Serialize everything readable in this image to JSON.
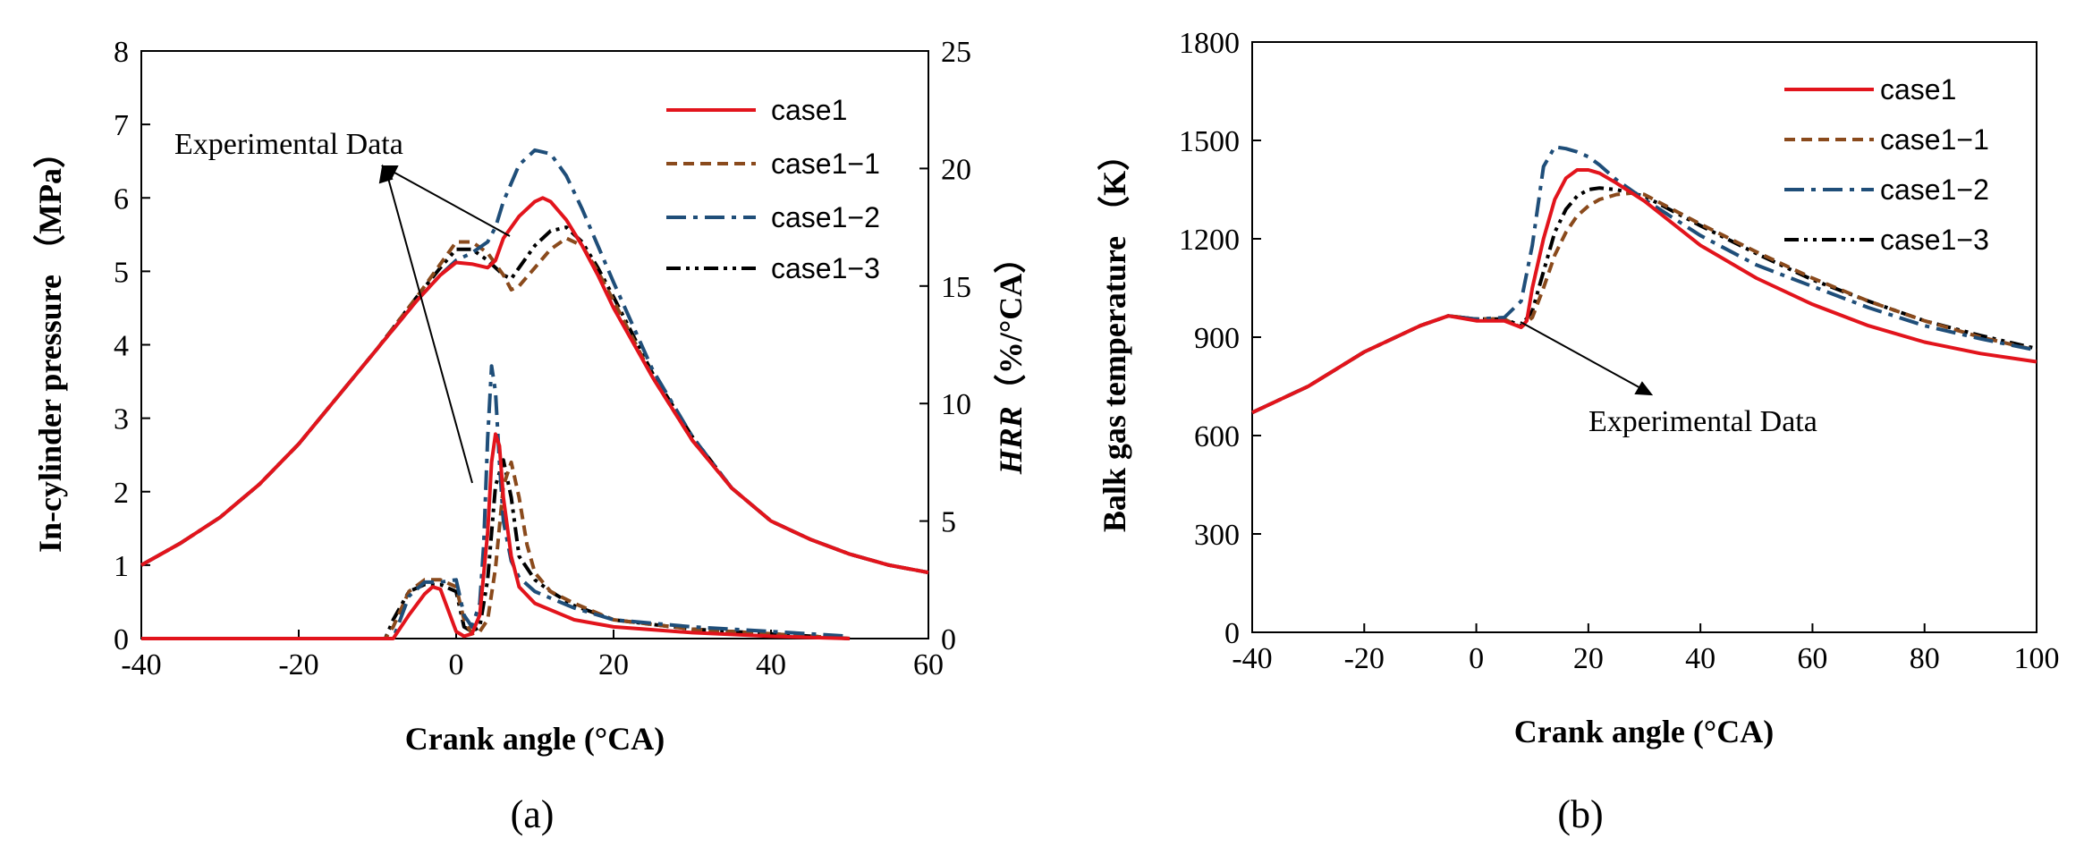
{
  "colors": {
    "case1": "#e2141c",
    "case1_1": "#8a4a1c",
    "case1_2": "#1f4e79",
    "case1_3": "#000000"
  },
  "chart_data": [
    {
      "type": "line",
      "panel_label": "(a)",
      "title": "",
      "xlabel": "Crank angle (°CA)",
      "ylabel": "In-cylinder pressure （MPa）",
      "y2label_italic": "HRR",
      "y2label_unit": "（%/°CA）",
      "xlim": [
        -40,
        60
      ],
      "ylim": [
        0,
        8
      ],
      "y2lim": [
        0,
        25
      ],
      "xticks": [
        "-40",
        "-20",
        "0",
        "20",
        "40",
        "60"
      ],
      "yticks": [
        "0",
        "1",
        "2",
        "3",
        "4",
        "5",
        "6",
        "7",
        "8"
      ],
      "y2ticks": [
        "0",
        "5",
        "10",
        "15",
        "20",
        "25"
      ],
      "legend_position": "top-right",
      "annotation": "Experimental Data",
      "pressure_series": [
        {
          "name": "case1",
          "style": "solid",
          "x": [
            -40,
            -35,
            -30,
            -25,
            -20,
            -15,
            -10,
            -5,
            -2,
            0,
            2,
            4,
            5,
            6,
            8,
            10,
            11,
            12,
            14,
            16,
            18,
            20,
            25,
            30,
            35,
            40,
            45,
            50,
            55,
            60
          ],
          "y": [
            1.0,
            1.3,
            1.65,
            2.1,
            2.65,
            3.3,
            3.95,
            4.6,
            4.95,
            5.12,
            5.1,
            5.05,
            5.15,
            5.45,
            5.75,
            5.95,
            6.0,
            5.95,
            5.7,
            5.35,
            4.95,
            4.5,
            3.55,
            2.7,
            2.05,
            1.6,
            1.35,
            1.15,
            1.0,
            0.9
          ]
        },
        {
          "name": "case1−1",
          "style": "dashed",
          "x": [
            -40,
            -35,
            -30,
            -25,
            -20,
            -15,
            -10,
            -5,
            -2,
            0,
            2,
            4,
            6,
            7,
            8,
            10,
            12,
            14,
            16,
            18,
            20,
            25,
            30,
            35,
            40,
            45,
            50,
            55,
            60
          ],
          "y": [
            1.0,
            1.3,
            1.65,
            2.1,
            2.65,
            3.3,
            3.95,
            4.65,
            5.1,
            5.4,
            5.4,
            5.25,
            4.95,
            4.75,
            4.8,
            5.05,
            5.3,
            5.45,
            5.35,
            5.0,
            4.6,
            3.55,
            2.7,
            2.05,
            1.6,
            1.35,
            1.15,
            1.0,
            0.9
          ]
        },
        {
          "name": "case1−2",
          "style": "dashdot",
          "x": [
            -40,
            -35,
            -30,
            -25,
            -20,
            -15,
            -10,
            -5,
            -2,
            0,
            2,
            4,
            5,
            6,
            8,
            10,
            12,
            14,
            16,
            18,
            20,
            25,
            30,
            35,
            40,
            45,
            50,
            55,
            60
          ],
          "y": [
            1.0,
            1.3,
            1.65,
            2.1,
            2.65,
            3.3,
            3.95,
            4.6,
            4.95,
            5.15,
            5.25,
            5.4,
            5.6,
            5.95,
            6.45,
            6.65,
            6.6,
            6.3,
            5.85,
            5.35,
            4.85,
            3.65,
            2.75,
            2.05,
            1.6,
            1.35,
            1.15,
            1.0,
            0.9
          ]
        },
        {
          "name": "case1−3",
          "style": "dashdotdot",
          "x": [
            -40,
            -35,
            -30,
            -25,
            -20,
            -15,
            -10,
            -5,
            -2,
            0,
            2,
            4,
            6,
            7,
            8,
            10,
            12,
            14,
            16,
            18,
            20,
            25,
            30,
            35,
            40,
            45,
            50,
            55,
            60
          ],
          "y": [
            1.0,
            1.3,
            1.65,
            2.1,
            2.65,
            3.3,
            3.95,
            4.65,
            5.05,
            5.3,
            5.3,
            5.15,
            4.95,
            4.9,
            5.05,
            5.35,
            5.55,
            5.6,
            5.4,
            5.05,
            4.65,
            3.6,
            2.75,
            2.05,
            1.6,
            1.35,
            1.15,
            1.0,
            0.9
          ]
        }
      ],
      "hrr_series": [
        {
          "name": "case1",
          "x": [
            -40,
            -10,
            -8,
            -6,
            -4,
            -3,
            -2,
            0,
            1,
            2,
            3,
            4,
            4.5,
            5,
            5.5,
            6,
            7,
            8,
            10,
            15,
            20,
            30,
            40,
            50
          ],
          "y": [
            0,
            0,
            0,
            1.0,
            1.9,
            2.2,
            2.1,
            0.3,
            0.1,
            0.2,
            1.0,
            4.5,
            7.5,
            8.7,
            8.2,
            6.0,
            3.5,
            2.2,
            1.5,
            0.8,
            0.5,
            0.25,
            0.1,
            0
          ]
        },
        {
          "name": "case1−1",
          "x": [
            -40,
            -10,
            -9,
            -8,
            -6,
            -4,
            -2,
            0,
            1,
            2,
            3,
            4,
            5,
            6,
            7,
            8,
            9,
            10,
            12,
            15,
            20,
            30,
            40,
            50
          ],
          "y": [
            0,
            0,
            0,
            0.5,
            2.0,
            2.5,
            2.5,
            2.2,
            0.8,
            0.2,
            0.3,
            0.8,
            3.0,
            6.5,
            7.5,
            6.0,
            4.0,
            2.8,
            2.0,
            1.5,
            0.8,
            0.4,
            0.2,
            0
          ]
        },
        {
          "name": "case1−2",
          "x": [
            -40,
            -10,
            -8,
            -6,
            -4,
            -2,
            0,
            1,
            2,
            3,
            3.5,
            4,
            4.5,
            5,
            5.5,
            6,
            7,
            8,
            10,
            15,
            20,
            30,
            40,
            50
          ],
          "y": [
            0,
            0,
            0,
            1.8,
            2.4,
            2.4,
            2.5,
            1.0,
            0.5,
            1.5,
            4.0,
            8.5,
            11.6,
            10.5,
            7.5,
            5.0,
            3.3,
            2.6,
            2.0,
            1.3,
            0.8,
            0.5,
            0.3,
            0.1
          ]
        },
        {
          "name": "case1−3",
          "x": [
            -40,
            -10,
            -9,
            -8,
            -6,
            -4,
            -2,
            0,
            1,
            2,
            3,
            4,
            5,
            6,
            7,
            8,
            10,
            12,
            15,
            20,
            30,
            40,
            50
          ],
          "y": [
            0,
            0,
            0,
            0.8,
            2.0,
            2.3,
            2.3,
            2.0,
            0.5,
            0.3,
            0.5,
            2.5,
            6.5,
            7.6,
            6.0,
            3.5,
            2.5,
            2.0,
            1.4,
            0.8,
            0.4,
            0.2,
            0
          ]
        }
      ]
    },
    {
      "type": "line",
      "panel_label": "(b)",
      "title": "",
      "xlabel": "Crank angle (°CA)",
      "ylabel": "Balk gas temperature （K）",
      "xlim": [
        -40,
        100
      ],
      "ylim": [
        0,
        1800
      ],
      "xticks": [
        "-40",
        "-20",
        "0",
        "20",
        "40",
        "60",
        "80",
        "100"
      ],
      "yticks": [
        "0",
        "300",
        "600",
        "900",
        "1200",
        "1500",
        "1800"
      ],
      "legend_position": "top-right",
      "annotation": "Experimental Data",
      "series": [
        {
          "name": "case1",
          "style": "solid",
          "x": [
            -40,
            -30,
            -20,
            -10,
            -5,
            0,
            5,
            8,
            9,
            10,
            12,
            14,
            16,
            18,
            20,
            22,
            25,
            30,
            40,
            50,
            60,
            70,
            80,
            90,
            100
          ],
          "y": [
            670,
            750,
            855,
            935,
            965,
            950,
            950,
            930,
            950,
            1050,
            1200,
            1320,
            1385,
            1410,
            1410,
            1400,
            1370,
            1315,
            1180,
            1080,
            1000,
            935,
            885,
            850,
            825
          ]
        },
        {
          "name": "case1−1",
          "style": "dashed",
          "x": [
            -40,
            -30,
            -20,
            -10,
            -5,
            0,
            5,
            8,
            10,
            12,
            14,
            16,
            18,
            20,
            22,
            25,
            28,
            30,
            40,
            50,
            60,
            70,
            80,
            90,
            100
          ],
          "y": [
            670,
            750,
            855,
            935,
            965,
            955,
            955,
            930,
            960,
            1050,
            1150,
            1220,
            1270,
            1300,
            1320,
            1335,
            1340,
            1335,
            1245,
            1160,
            1080,
            1010,
            950,
            900,
            860
          ]
        },
        {
          "name": "case1−2",
          "style": "dashdot",
          "x": [
            -40,
            -30,
            -20,
            -10,
            -5,
            0,
            5,
            8,
            10,
            12,
            14,
            16,
            18,
            20,
            22,
            25,
            30,
            40,
            50,
            60,
            70,
            80,
            90,
            100
          ],
          "y": [
            670,
            750,
            855,
            935,
            965,
            955,
            960,
            1010,
            1180,
            1420,
            1480,
            1475,
            1465,
            1450,
            1425,
            1380,
            1320,
            1210,
            1120,
            1055,
            990,
            935,
            895,
            860
          ]
        },
        {
          "name": "case1−3",
          "style": "dashdotdot",
          "x": [
            -40,
            -30,
            -20,
            -10,
            -5,
            0,
            5,
            8,
            10,
            12,
            14,
            16,
            18,
            20,
            22,
            25,
            30,
            40,
            50,
            60,
            70,
            80,
            90,
            100
          ],
          "y": [
            670,
            750,
            855,
            935,
            965,
            955,
            955,
            935,
            980,
            1100,
            1220,
            1290,
            1330,
            1350,
            1355,
            1350,
            1330,
            1240,
            1155,
            1075,
            1010,
            950,
            905,
            865
          ]
        }
      ]
    }
  ]
}
